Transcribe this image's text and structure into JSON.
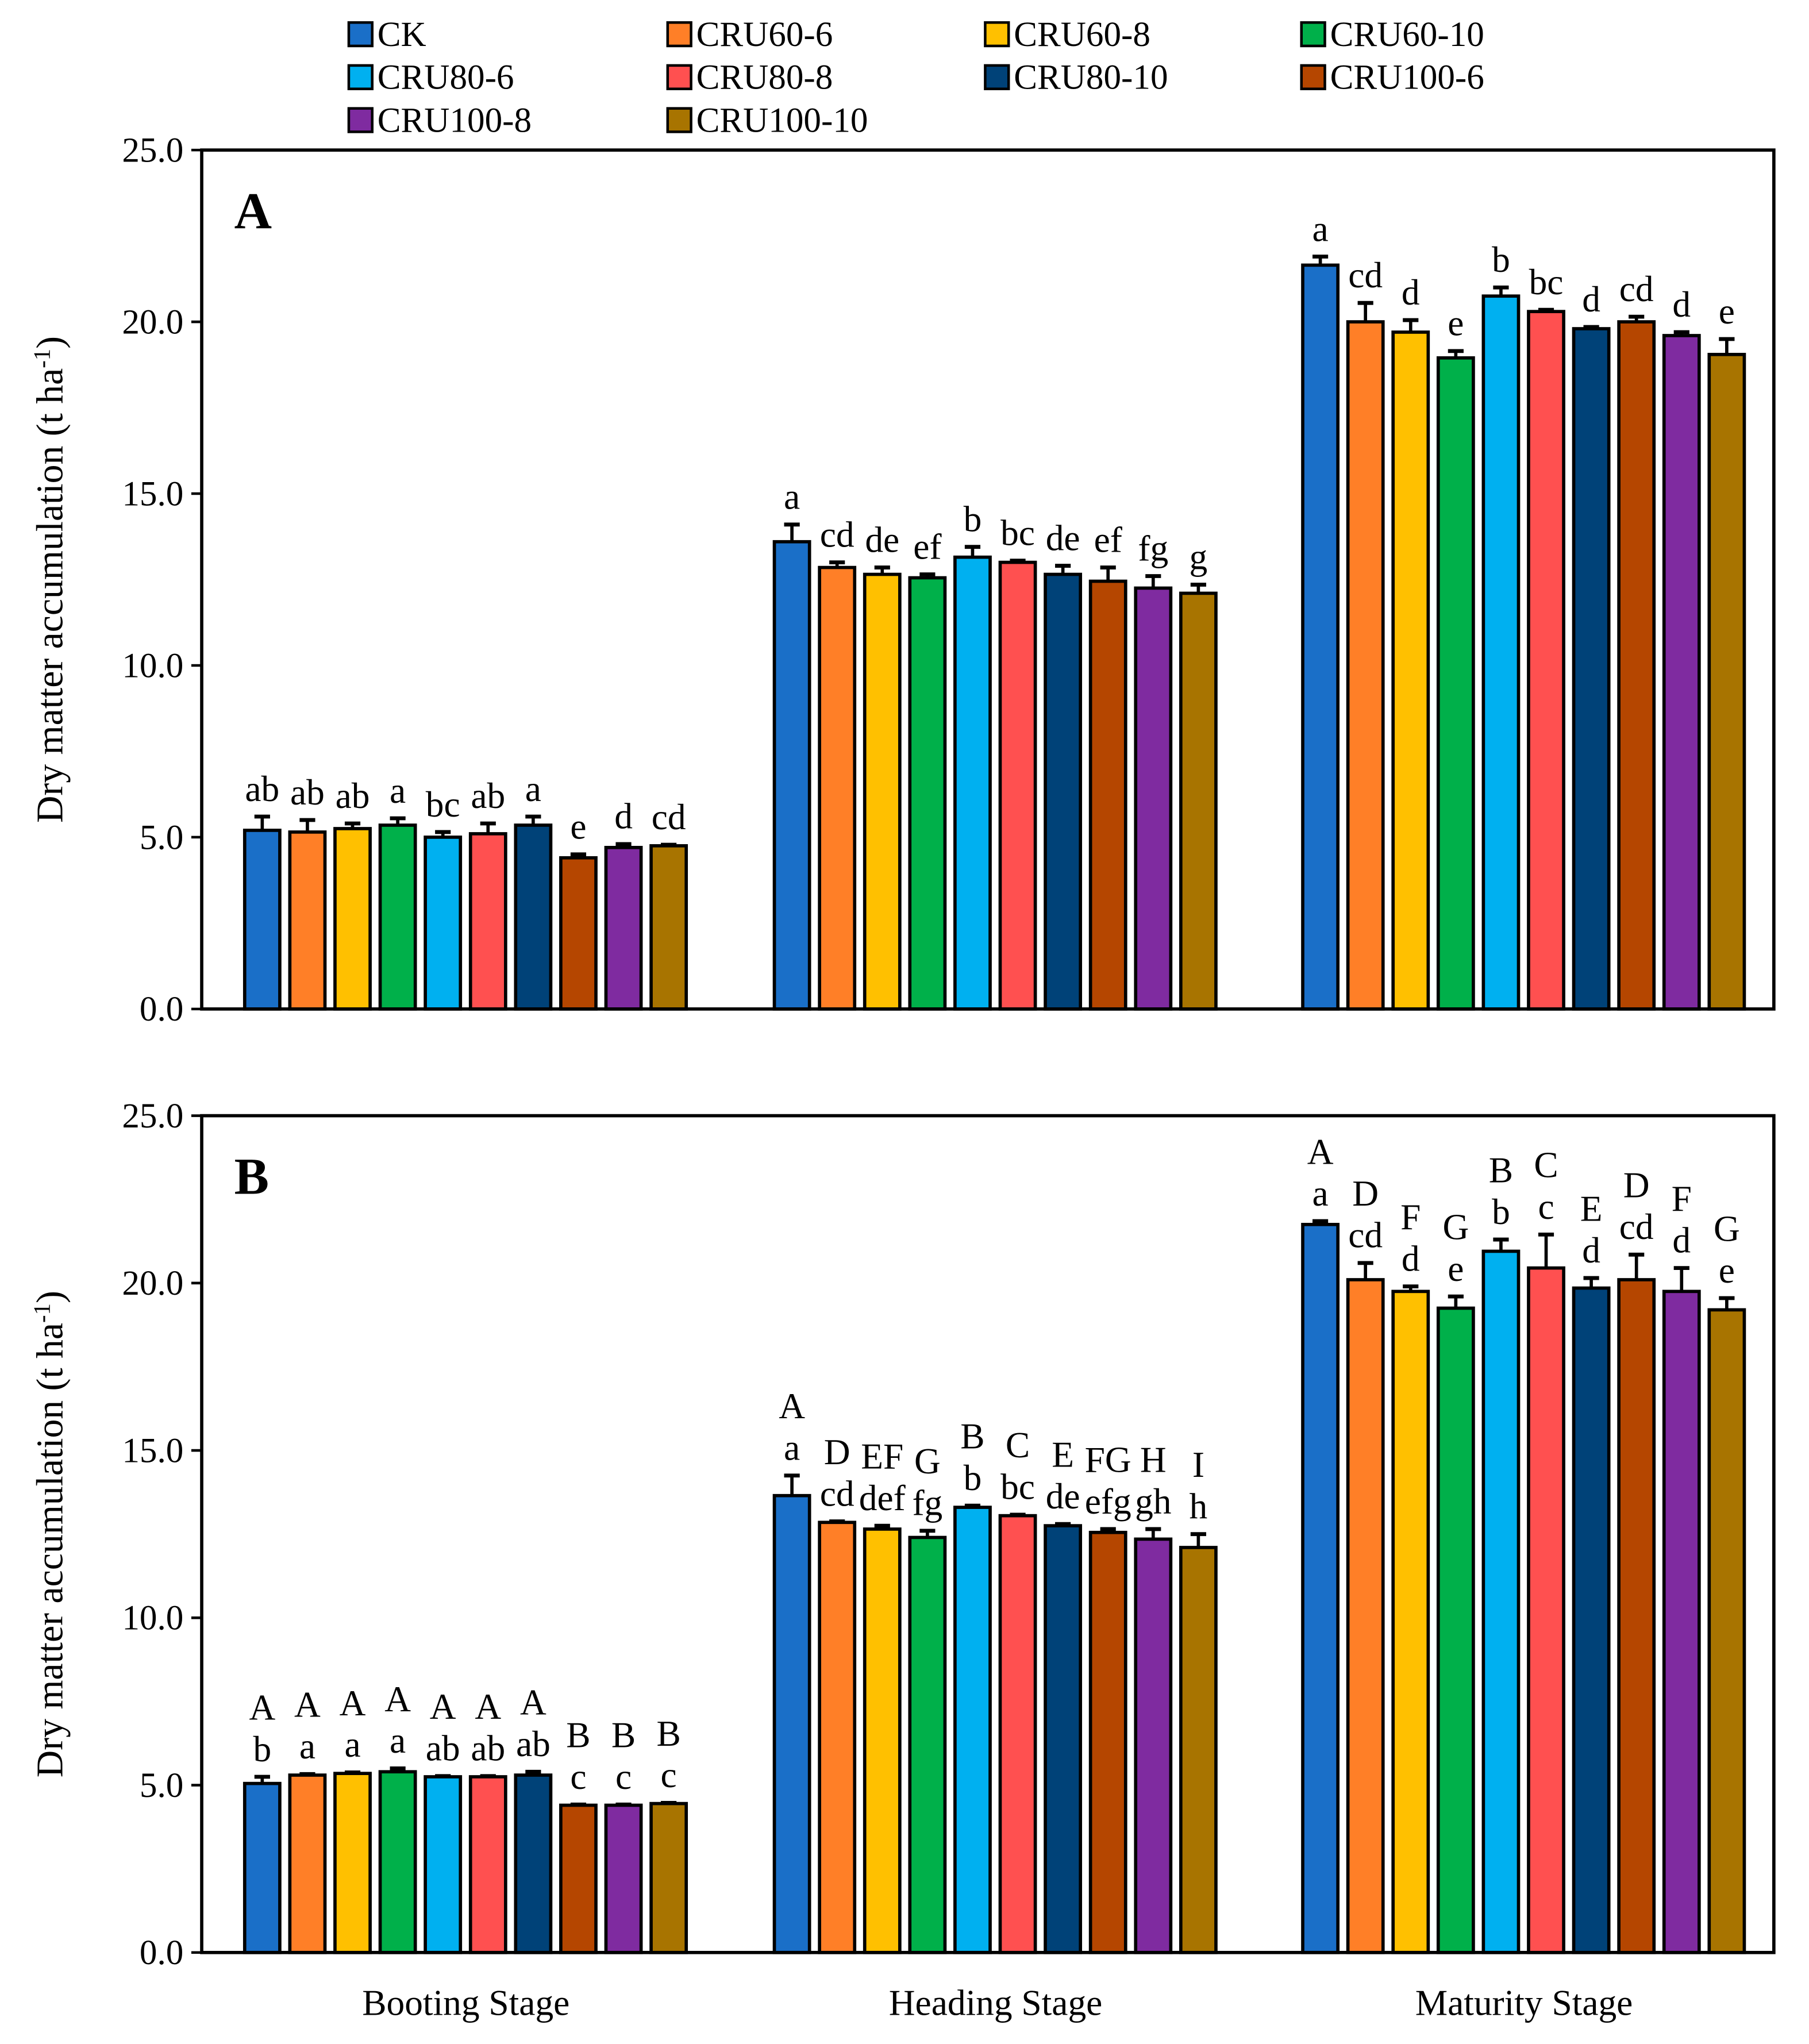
{
  "chart_data": {
    "type": "bar",
    "ylabel": "Dry matter accumulation (t ha-1)",
    "ylabel_parts": {
      "main": "Dry matter accumulation (t ha",
      "sup": "-1",
      "end": ")"
    },
    "ylim": [
      0,
      25
    ],
    "yticks": [
      "0.0",
      "5.0",
      "10.0",
      "15.0",
      "20.0",
      "25.0"
    ],
    "categories": [
      "Booting Stage",
      "Heading Stage",
      "Maturity Stage"
    ],
    "legend_placement": "top",
    "series_names": [
      "CK",
      "CRU60-6",
      "CRU60-8",
      "CRU60-10",
      "CRU80-6",
      "CRU80-8",
      "CRU80-10",
      "CRU100-6",
      "CRU100-8",
      "CRU100-10"
    ],
    "colors": [
      "#1a6fc8",
      "#ff7f27",
      "#ffc000",
      "#00b04a",
      "#00b0f0",
      "#ff5050",
      "#004278",
      "#b54600",
      "#7f2ba0",
      "#a87400"
    ],
    "panels": [
      {
        "label": "A",
        "values": [
          [
            5.2,
            5.15,
            5.25,
            5.35,
            5.0,
            5.1,
            5.35,
            4.4,
            4.7,
            4.75
          ],
          [
            13.6,
            12.85,
            12.65,
            12.55,
            13.15,
            13.0,
            12.65,
            12.45,
            12.25,
            12.1
          ],
          [
            21.65,
            20.0,
            19.7,
            18.95,
            20.75,
            20.3,
            19.8,
            20.0,
            19.6,
            19.05
          ]
        ],
        "errors": [
          [
            0.4,
            0.35,
            0.15,
            0.2,
            0.15,
            0.3,
            0.25,
            0.1,
            0.1,
            0.03
          ],
          [
            0.5,
            0.15,
            0.2,
            0.1,
            0.3,
            0.05,
            0.25,
            0.4,
            0.35,
            0.25
          ],
          [
            0.25,
            0.55,
            0.35,
            0.2,
            0.25,
            0.05,
            0.05,
            0.15,
            0.1,
            0.45
          ]
        ],
        "letters_lower": [
          [
            "ab",
            "ab",
            "ab",
            "a",
            "bc",
            "ab",
            "a",
            "e",
            "d",
            "cd"
          ],
          [
            "a",
            "cd",
            "de",
            "ef",
            "b",
            "bc",
            "de",
            "ef",
            "fg",
            "g"
          ],
          [
            "a",
            "cd",
            "d",
            "e",
            "b",
            "bc",
            "d",
            "cd",
            "d",
            "e"
          ]
        ],
        "letters_upper": null
      },
      {
        "label": "B",
        "values": [
          [
            5.05,
            5.3,
            5.35,
            5.4,
            5.25,
            5.25,
            5.3,
            4.4,
            4.4,
            4.45
          ],
          [
            13.65,
            12.85,
            12.65,
            12.4,
            13.3,
            13.05,
            12.75,
            12.55,
            12.35,
            12.1
          ],
          [
            21.75,
            20.1,
            19.75,
            19.25,
            20.95,
            20.45,
            19.85,
            20.1,
            19.75,
            19.2
          ]
        ],
        "errors": [
          [
            0.2,
            0.03,
            0.03,
            0.1,
            0.02,
            0.02,
            0.1,
            0.02,
            0.02,
            0.02
          ],
          [
            0.6,
            0.03,
            0.1,
            0.2,
            0.05,
            0.03,
            0.05,
            0.1,
            0.3,
            0.4
          ],
          [
            0.1,
            0.5,
            0.15,
            0.35,
            0.35,
            1.0,
            0.3,
            0.75,
            0.7,
            0.35
          ]
        ],
        "letters_lower": [
          [
            "b",
            "a",
            "a",
            "a",
            "ab",
            "ab",
            "ab",
            "c",
            "c",
            "c"
          ],
          [
            "a",
            "cd",
            "def",
            "fg",
            "b",
            "bc",
            "de",
            "efg",
            "gh",
            "h"
          ],
          [
            "a",
            "cd",
            "d",
            "e",
            "b",
            "c",
            "d",
            "cd",
            "d",
            "e"
          ]
        ],
        "letters_upper": [
          [
            "A",
            "A",
            "A",
            "A",
            "A",
            "A",
            "A",
            "B",
            "B",
            "B"
          ],
          [
            "A",
            "D",
            "EF",
            "G",
            "B",
            "C",
            "E",
            "FG",
            "H",
            "I"
          ],
          [
            "A",
            "D",
            "F",
            "G",
            "B",
            "C",
            "E",
            "D",
            "F",
            "G"
          ]
        ]
      }
    ]
  }
}
